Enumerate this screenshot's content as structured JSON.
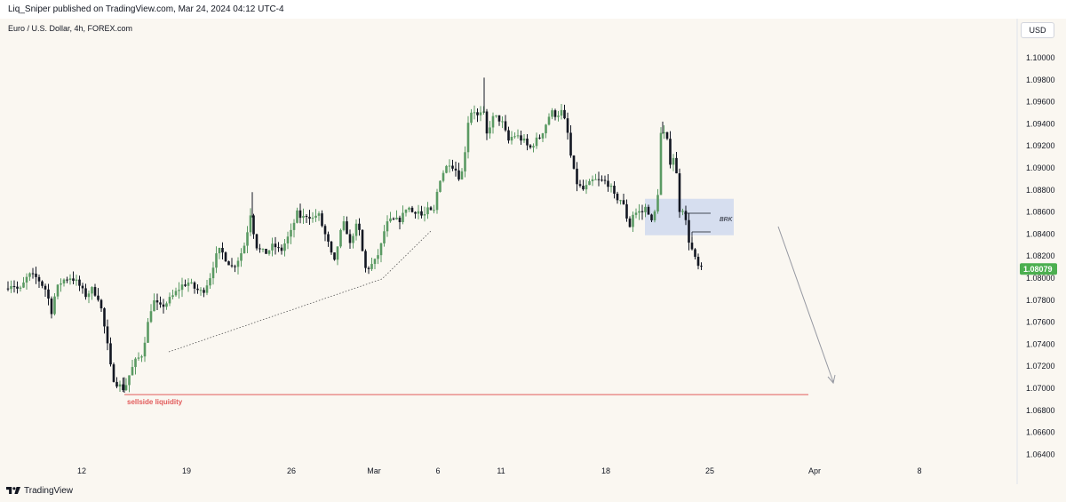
{
  "header": {
    "publisher_line": "Liq_Sniper published on TradingView.com, Mar 24, 2024 04:12 UTC-4"
  },
  "chart_header": {
    "symbol_line": "Euro / U.S. Dollar, 4h, FOREX.com",
    "currency_button": "USD"
  },
  "footer": {
    "brand": "TradingView"
  },
  "colors": {
    "bull": "#5a9a63",
    "bear": "#131722",
    "zone": "#c9d5ee",
    "liquidity_line": "#e25b5b",
    "last_price_bg": "#4caf50",
    "background": "#faf7f1"
  },
  "chart_data": {
    "type": "candlestick",
    "title": "Euro / U.S. Dollar, 4h, FOREX.com",
    "symbol": "EURUSD",
    "timeframe": "4h",
    "currency": "USD",
    "ylim": [
      1.0625,
      1.1022
    ],
    "y_ticks": [
      "1.10000",
      "1.09800",
      "1.09600",
      "1.09400",
      "1.09200",
      "1.09000",
      "1.08800",
      "1.08600",
      "1.08400",
      "1.08200",
      "1.08000",
      "1.07800",
      "1.07600",
      "1.07400",
      "1.07200",
      "1.07000",
      "1.06800",
      "1.06600",
      "1.06400"
    ],
    "x_ticks": [
      "12",
      "19",
      "26",
      "Mar",
      "6",
      "11",
      "18",
      "25",
      "Apr",
      "8"
    ],
    "last_price": "1.08079",
    "grid": false,
    "price_path": [
      [
        0,
        1.0775
      ],
      [
        6,
        1.0792
      ],
      [
        14,
        1.0795
      ],
      [
        22,
        1.0788
      ],
      [
        32,
        1.0803
      ],
      [
        42,
        1.08
      ],
      [
        52,
        1.0789
      ],
      [
        58,
        1.077
      ],
      [
        63,
        1.0789
      ],
      [
        70,
        1.0798
      ],
      [
        80,
        1.0801
      ],
      [
        88,
        1.0795
      ],
      [
        96,
        1.0784
      ],
      [
        104,
        1.079
      ],
      [
        112,
        1.0781
      ],
      [
        120,
        1.0744
      ],
      [
        126,
        1.0711
      ],
      [
        132,
        1.0704
      ],
      [
        140,
        1.0699
      ],
      [
        146,
        1.0713
      ],
      [
        152,
        1.0724
      ],
      [
        160,
        1.0731
      ],
      [
        166,
        1.0757
      ],
      [
        172,
        1.078
      ],
      [
        180,
        1.0773
      ],
      [
        188,
        1.0778
      ],
      [
        196,
        1.0785
      ],
      [
        204,
        1.0793
      ],
      [
        212,
        1.0796
      ],
      [
        220,
        1.079
      ],
      [
        228,
        1.0787
      ],
      [
        236,
        1.08
      ],
      [
        242,
        1.0818
      ],
      [
        248,
        1.0826
      ],
      [
        254,
        1.0818
      ],
      [
        262,
        1.0809
      ],
      [
        270,
        1.082
      ],
      [
        276,
        1.0832
      ],
      [
        282,
        1.0859
      ],
      [
        288,
        1.083
      ],
      [
        294,
        1.0824
      ],
      [
        300,
        1.0823
      ],
      [
        308,
        1.083
      ],
      [
        316,
        1.0824
      ],
      [
        322,
        1.0834
      ],
      [
        328,
        1.0842
      ],
      [
        334,
        1.0859
      ],
      [
        340,
        1.0854
      ],
      [
        346,
        1.0858
      ],
      [
        352,
        1.0854
      ],
      [
        358,
        1.0859
      ],
      [
        364,
        1.0844
      ],
      [
        370,
        1.083
      ],
      [
        376,
        1.0812
      ],
      [
        382,
        1.0838
      ],
      [
        388,
        1.0851
      ],
      [
        394,
        1.083
      ],
      [
        400,
        1.0848
      ],
      [
        406,
        1.084
      ],
      [
        410,
        1.0808
      ],
      [
        416,
        1.081
      ],
      [
        422,
        1.0815
      ],
      [
        428,
        1.0826
      ],
      [
        434,
        1.0848
      ],
      [
        440,
        1.0852
      ],
      [
        446,
        1.0852
      ],
      [
        452,
        1.0854
      ],
      [
        458,
        1.0866
      ],
      [
        464,
        1.086
      ],
      [
        470,
        1.0862
      ],
      [
        476,
        1.0855
      ],
      [
        482,
        1.0862
      ],
      [
        488,
        1.0858
      ],
      [
        494,
        1.0888
      ],
      [
        500,
        1.0898
      ],
      [
        506,
        1.0905
      ],
      [
        512,
        1.09
      ],
      [
        518,
        1.089
      ],
      [
        522,
        1.0902
      ],
      [
        526,
        1.094
      ],
      [
        532,
        1.0955
      ],
      [
        538,
        1.0946
      ],
      [
        544,
        1.0951
      ],
      [
        548,
        1.093
      ],
      [
        554,
        1.0945
      ],
      [
        560,
        1.0946
      ],
      [
        566,
        1.094
      ],
      [
        572,
        1.0924
      ],
      [
        578,
        1.093
      ],
      [
        584,
        1.0928
      ],
      [
        590,
        1.0924
      ],
      [
        596,
        1.0917
      ],
      [
        602,
        1.0924
      ],
      [
        608,
        1.0928
      ],
      [
        614,
        1.0939
      ],
      [
        620,
        1.0951
      ],
      [
        626,
        1.0948
      ],
      [
        632,
        1.0951
      ],
      [
        638,
        1.0937
      ],
      [
        644,
        1.0902
      ],
      [
        650,
        1.0885
      ],
      [
        656,
        1.088
      ],
      [
        662,
        1.0884
      ],
      [
        668,
        1.0889
      ],
      [
        674,
        1.0888
      ],
      [
        680,
        1.0888
      ],
      [
        686,
        1.0885
      ],
      [
        692,
        1.0873
      ],
      [
        698,
        1.0872
      ],
      [
        704,
        1.0862
      ],
      [
        708,
        1.0844
      ],
      [
        712,
        1.0858
      ],
      [
        718,
        1.086
      ],
      [
        724,
        1.086
      ],
      [
        728,
        1.0866
      ],
      [
        734,
        1.0849
      ],
      [
        740,
        1.087
      ],
      [
        744,
        1.0931
      ],
      [
        750,
        1.093
      ],
      [
        754,
        1.0905
      ],
      [
        760,
        1.0913
      ],
      [
        764,
        1.0862
      ],
      [
        770,
        1.0864
      ],
      [
        774,
        1.0838
      ],
      [
        778,
        1.0828
      ],
      [
        782,
        1.0818
      ],
      [
        786,
        1.081
      ],
      [
        790,
        1.0808
      ]
    ],
    "annotations": [
      {
        "type": "zone",
        "label": "BRK",
        "price_range": [
          1.08389,
          1.0872
        ]
      },
      {
        "type": "horizontal_line",
        "label": "sellside liquidity",
        "price": 1.06943
      },
      {
        "type": "trendline",
        "style": "dotted"
      },
      {
        "type": "arrow",
        "direction": "down"
      }
    ]
  }
}
